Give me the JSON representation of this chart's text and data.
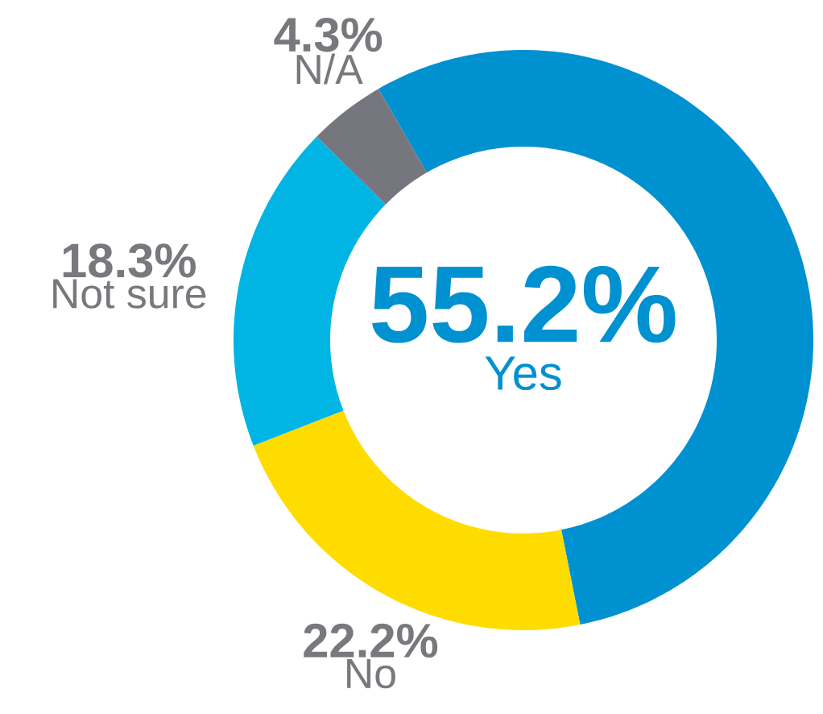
{
  "chart_data": {
    "type": "donut",
    "categories": [
      "Yes",
      "No",
      "Not sure",
      "N/A"
    ],
    "values": [
      55.2,
      22.2,
      18.3,
      4.3
    ],
    "colors": [
      "#0091d1",
      "#ffdc00",
      "#00b4e3",
      "#76767e"
    ],
    "value_labels": [
      "55.2%",
      "22.2%",
      "18.3%",
      "4.3%"
    ]
  }
}
